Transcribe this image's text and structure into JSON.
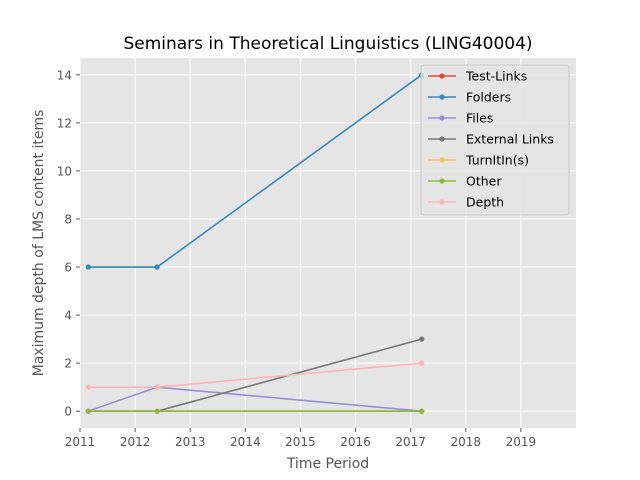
{
  "chart_data": {
    "type": "line",
    "title": "Seminars in Theoretical Linguistics (LING40004)",
    "xlabel": "Time Period",
    "ylabel": "Maximum depth of LMS content items",
    "xlim": [
      2011,
      2020
    ],
    "ylim": [
      -0.7,
      14.7
    ],
    "x_ticks": [
      2011,
      2012,
      2013,
      2014,
      2015,
      2016,
      2017,
      2018,
      2019
    ],
    "y_ticks": [
      0,
      2,
      4,
      6,
      8,
      10,
      12,
      14
    ],
    "grid": true,
    "legend_position": "top-right",
    "x": [
      2011.15,
      2012.4,
      2017.2
    ],
    "series": [
      {
        "name": "Test-Links",
        "color": "#e24a33",
        "values": [
          0,
          0,
          0
        ]
      },
      {
        "name": "Folders",
        "color": "#348abd",
        "values": [
          6,
          6,
          14
        ]
      },
      {
        "name": "Files",
        "color": "#988ed5",
        "values": [
          0,
          1,
          0
        ]
      },
      {
        "name": "External Links",
        "color": "#777777",
        "values": [
          0,
          0,
          3
        ]
      },
      {
        "name": "TurnItIn(s)",
        "color": "#fbc15e",
        "values": [
          0,
          0,
          0
        ]
      },
      {
        "name": "Other",
        "color": "#8eba42",
        "values": [
          0,
          0,
          0
        ]
      },
      {
        "name": "Depth",
        "color": "#ffb5b8",
        "values": [
          1,
          1,
          2
        ]
      }
    ]
  }
}
